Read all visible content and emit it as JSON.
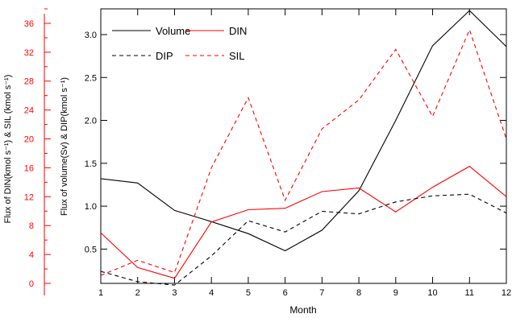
{
  "chart_data": {
    "type": "line",
    "xlabel": "Month",
    "ylabel": "Flux of volume(Sv) & DIP(kmol s⁻¹)",
    "ylabel_right_axis": "Flux of DIN(kmol s⁻¹) & SIL (kmol s⁻¹)",
    "x": [
      1,
      2,
      3,
      4,
      5,
      6,
      7,
      8,
      9,
      10,
      11,
      12
    ],
    "xlim": [
      1,
      12
    ],
    "ylim": [
      0.1,
      3.3
    ],
    "yticks": [
      "0.5",
      "1.0",
      "1.5",
      "2.0",
      "2.5",
      "3.0"
    ],
    "secondary_axis": {
      "ylim": [
        0,
        38
      ],
      "ticks": [
        "0",
        "4",
        "8",
        "12",
        "16",
        "20",
        "24",
        "28",
        "32",
        "36"
      ],
      "color": "#ff0000"
    },
    "series": [
      {
        "name": "Volume",
        "axis": "primary",
        "color": "#000000",
        "dash": "solid",
        "values": [
          1.32,
          1.27,
          0.95,
          0.82,
          0.68,
          0.48,
          0.72,
          1.18,
          2.0,
          2.87,
          3.28,
          2.86
        ]
      },
      {
        "name": "DIN",
        "axis": "secondary",
        "color": "#ff0000",
        "dash": "solid",
        "values": [
          7.0,
          2.2,
          0.7,
          8.5,
          10.2,
          10.4,
          12.7,
          13.2,
          9.9,
          13.3,
          16.2,
          12.0
        ]
      },
      {
        "name": "DIP",
        "axis": "primary",
        "color": "#000000",
        "dash": "dashed",
        "values": [
          0.24,
          0.12,
          0.08,
          0.42,
          0.83,
          0.7,
          0.94,
          0.91,
          1.05,
          1.12,
          1.14,
          0.92
        ]
      },
      {
        "name": "SIL",
        "axis": "secondary",
        "color": "#ff0000",
        "dash": "dashed",
        "values": [
          1.1,
          3.2,
          1.5,
          16.0,
          25.7,
          11.5,
          21.4,
          25.4,
          32.4,
          23.1,
          35.1,
          20.0
        ]
      }
    ],
    "legend_position": "top-left",
    "grid": false
  }
}
